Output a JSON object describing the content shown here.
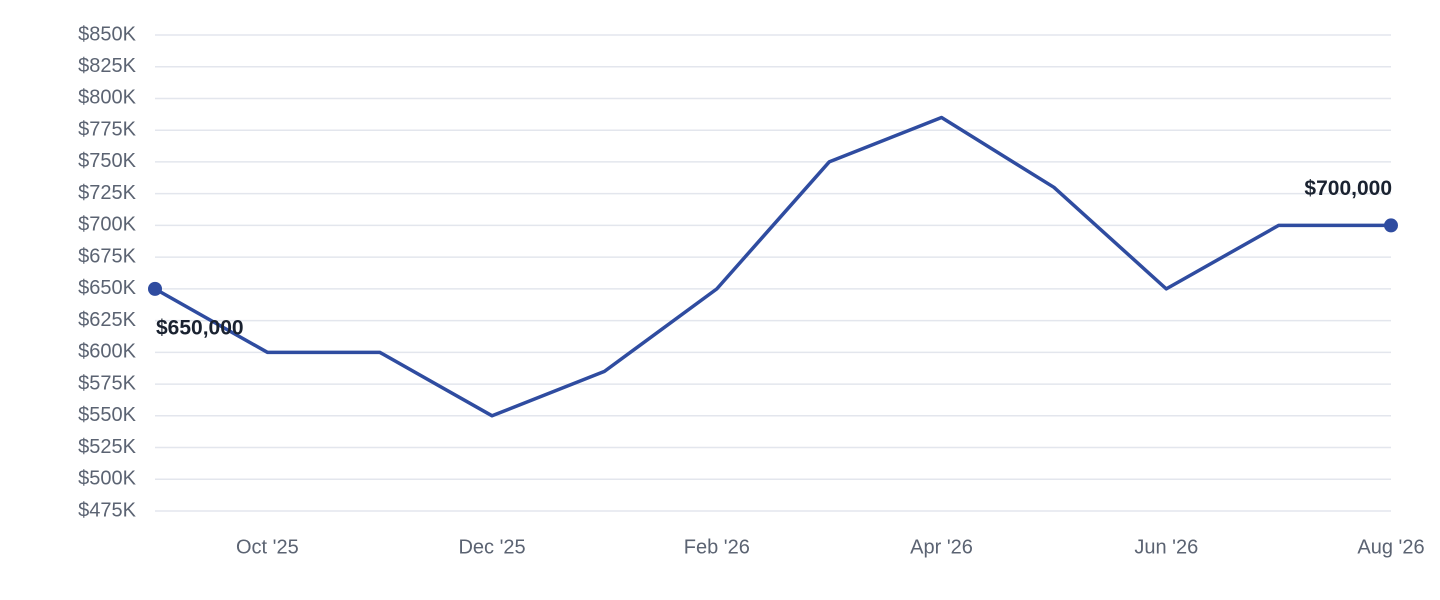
{
  "chart_data": {
    "type": "line",
    "categories": [
      null,
      "Oct '25",
      null,
      "Dec '25",
      null,
      "Feb '26",
      null,
      "Apr '26",
      null,
      "Jun '26",
      null,
      "Aug '26"
    ],
    "values": [
      650000,
      600000,
      600000,
      550000,
      585000,
      650000,
      750000,
      785000,
      730000,
      650000,
      700000,
      700000
    ],
    "value_labels": [
      "$650,000",
      null,
      null,
      null,
      null,
      null,
      null,
      null,
      null,
      null,
      null,
      "$700,000"
    ],
    "color": "#2f4ca0",
    "ylim": [
      475000,
      850000
    ],
    "yticks": [
      {
        "value": 475000,
        "label": "$475K"
      },
      {
        "value": 500000,
        "label": "$500K"
      },
      {
        "value": 525000,
        "label": "$525K"
      },
      {
        "value": 550000,
        "label": "$550K"
      },
      {
        "value": 575000,
        "label": "$575K"
      },
      {
        "value": 600000,
        "label": "$600K"
      },
      {
        "value": 625000,
        "label": "$625K"
      },
      {
        "value": 650000,
        "label": "$650K"
      },
      {
        "value": 675000,
        "label": "$675K"
      },
      {
        "value": 700000,
        "label": "$700K"
      },
      {
        "value": 725000,
        "label": "$725K"
      },
      {
        "value": 750000,
        "label": "$750K"
      },
      {
        "value": 775000,
        "label": "$775K"
      },
      {
        "value": 800000,
        "label": "$800K"
      },
      {
        "value": 825000,
        "label": "$825K"
      },
      {
        "value": 850000,
        "label": "$850K"
      }
    ],
    "grid": true
  }
}
